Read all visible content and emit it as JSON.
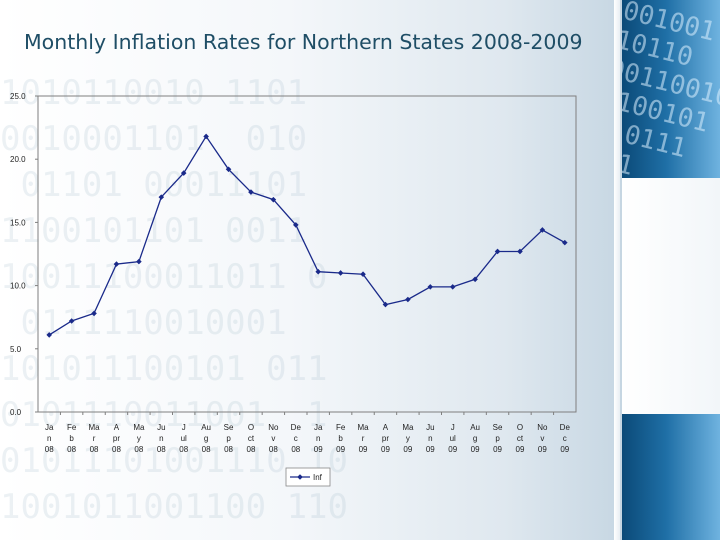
{
  "title": "Monthly Inflation Rates for Northern States 2008-2009",
  "colors": {
    "series": "#1a2a8a",
    "axis": "#555555",
    "title": "#1f4e66"
  },
  "chart_data": {
    "type": "line",
    "title": "Monthly Inflation Rates for Northern States 2008-2009",
    "xlabel": "",
    "ylabel": "",
    "ylim": [
      0,
      25
    ],
    "yticks": [
      "0.0",
      "5.0",
      "10.0",
      "15.0",
      "20.0",
      "25.0"
    ],
    "grid": false,
    "legend_position": "bottom-center",
    "categories": [
      [
        "Ja",
        "n",
        "08"
      ],
      [
        "Fe",
        "b",
        "08"
      ],
      [
        "Ma",
        "r",
        "08"
      ],
      [
        "A",
        "pr",
        "08"
      ],
      [
        "Ma",
        "y",
        "08"
      ],
      [
        "Ju",
        "n",
        "08"
      ],
      [
        "J",
        "ul",
        "08"
      ],
      [
        "Au",
        "g",
        "08"
      ],
      [
        "Se",
        "p",
        "08"
      ],
      [
        "O",
        "ct",
        "08"
      ],
      [
        "No",
        "v",
        "08"
      ],
      [
        "De",
        "c",
        "08"
      ],
      [
        "Ja",
        "n",
        "09"
      ],
      [
        "Fe",
        "b",
        "09"
      ],
      [
        "Ma",
        "r",
        "09"
      ],
      [
        "A",
        "pr",
        "09"
      ],
      [
        "Ma",
        "y",
        "09"
      ],
      [
        "Ju",
        "n",
        "09"
      ],
      [
        "J",
        "ul",
        "09"
      ],
      [
        "Au",
        "g",
        "09"
      ],
      [
        "Se",
        "p",
        "09"
      ],
      [
        "O",
        "ct",
        "09"
      ],
      [
        "No",
        "v",
        "09"
      ],
      [
        "De",
        "c",
        "09"
      ]
    ],
    "series": [
      {
        "name": "Inf",
        "values": [
          6.1,
          7.2,
          7.8,
          11.7,
          11.9,
          17.0,
          18.9,
          21.8,
          19.2,
          17.4,
          16.8,
          14.8,
          11.1,
          11.0,
          10.9,
          8.5,
          8.9,
          9.9,
          9.9,
          10.5,
          12.7,
          12.7,
          14.4,
          13.4
        ]
      }
    ]
  }
}
